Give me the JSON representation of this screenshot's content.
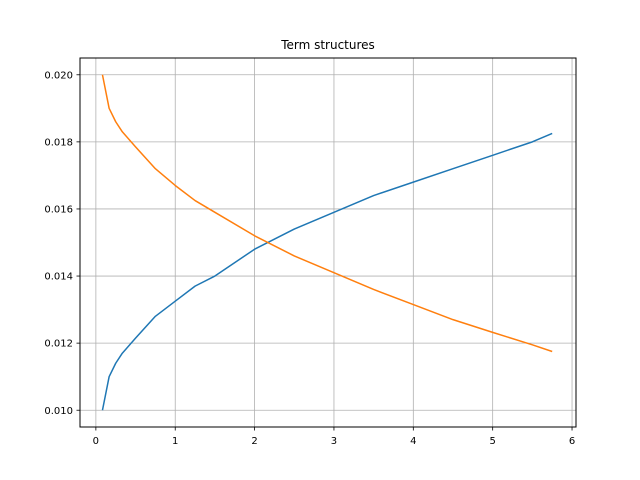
{
  "chart_data": {
    "type": "line",
    "title": "Term structures",
    "xlabel": "",
    "ylabel": "",
    "xlim": [
      -0.2,
      6.05
    ],
    "ylim": [
      0.0095,
      0.0205
    ],
    "grid": true,
    "x_ticks": [
      0,
      1,
      2,
      3,
      4,
      5,
      6
    ],
    "x_tick_labels": [
      "0",
      "1",
      "2",
      "3",
      "4",
      "5",
      "6"
    ],
    "y_ticks": [
      0.01,
      0.012,
      0.014,
      0.016,
      0.018,
      0.02
    ],
    "y_tick_labels": [
      "0.010",
      "0.012",
      "0.014",
      "0.016",
      "0.018",
      "0.020"
    ],
    "series": [
      {
        "color": "#1f77b4",
        "x": [
          0.083,
          0.167,
          0.25,
          0.333,
          0.5,
          0.75,
          1.0,
          1.25,
          1.5,
          2.0,
          2.5,
          3.0,
          3.5,
          4.0,
          4.5,
          5.0,
          5.5,
          5.75
        ],
        "y": [
          0.01,
          0.011,
          0.0114,
          0.0117,
          0.01215,
          0.0128,
          0.01325,
          0.0137,
          0.014,
          0.0148,
          0.0154,
          0.0159,
          0.0164,
          0.0168,
          0.0172,
          0.0176,
          0.018,
          0.01825
        ]
      },
      {
        "color": "#ff7f0e",
        "x": [
          0.083,
          0.167,
          0.25,
          0.333,
          0.5,
          0.75,
          1.0,
          1.25,
          1.5,
          2.0,
          2.5,
          3.0,
          3.5,
          4.0,
          4.5,
          5.0,
          5.5,
          5.75
        ],
        "y": [
          0.02,
          0.019,
          0.0186,
          0.0183,
          0.01785,
          0.0172,
          0.0167,
          0.01625,
          0.0159,
          0.0152,
          0.0146,
          0.0141,
          0.0136,
          0.01315,
          0.0127,
          0.01232,
          0.01195,
          0.01175
        ]
      }
    ]
  }
}
